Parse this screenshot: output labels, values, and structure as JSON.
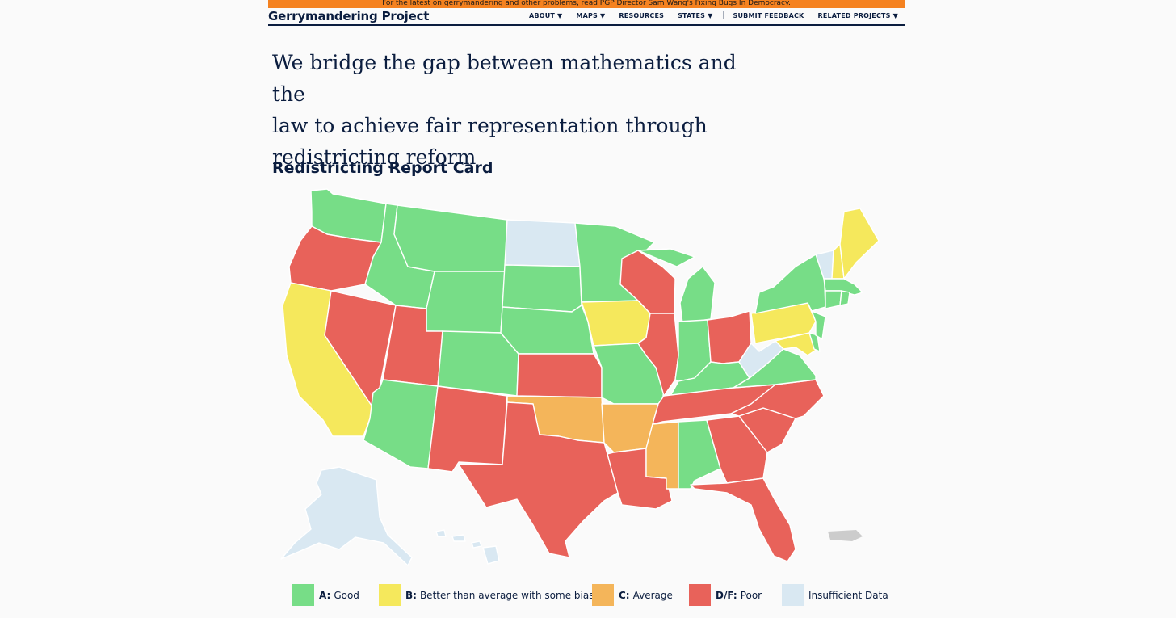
{
  "banner": {
    "text": "For the latest on gerrymandering and other problems, read PGP Director Sam Wang's ",
    "link": "Fixing Bugs In Democracy",
    "end": "."
  },
  "header": {
    "brand": "Gerrymandering Project",
    "nav": [
      "ABOUT ▼",
      "MAPS ▼",
      "RESOURCES",
      "STATES ▼",
      "SUBMIT FEEDBACK",
      "RELATED PROJECTS ▼"
    ]
  },
  "hero": {
    "line1": "We bridge the gap between mathematics and the",
    "line2": "law to achieve fair representation through",
    "line3": "redistricting reform"
  },
  "report": {
    "title": "Redistricting Report Card"
  },
  "colors": {
    "A": "#77dd87",
    "B": "#f5e85c",
    "C": "#f4b55a",
    "DF": "#e8625a",
    "NA": "#d9e8f2",
    "territory": "#cccccc",
    "banner": "#f58220",
    "navy": "#0b1d3f"
  },
  "legend": [
    {
      "grade": "A:",
      "label": "Good",
      "key": "A"
    },
    {
      "grade": "B:",
      "label": "Better than average with some bias",
      "key": "B"
    },
    {
      "grade": "C:",
      "label": "Average",
      "key": "C"
    },
    {
      "grade": "D/F:",
      "label": "Poor",
      "key": "DF"
    },
    {
      "grade": "",
      "label": "Insufficient Data",
      "key": "NA"
    }
  ],
  "states": {
    "WA": "A",
    "OR": "DF",
    "CA": "B",
    "NV": "DF",
    "ID": "A",
    "MT": "A",
    "WY": "A",
    "UT": "DF",
    "AZ": "A",
    "CO": "A",
    "NM": "DF",
    "ND": "NA",
    "SD": "A",
    "NE": "A",
    "KS": "DF",
    "OK": "C",
    "TX": "DF",
    "MN": "A",
    "IA": "B",
    "MO": "A",
    "AR": "C",
    "LA": "DF",
    "WI": "DF",
    "IL": "DF",
    "MS": "C",
    "MI": "A",
    "IN": "A",
    "KY": "A",
    "TN": "DF",
    "AL": "A",
    "OH": "DF",
    "GA": "DF",
    "FL": "DF",
    "SC": "DF",
    "NC": "DF",
    "VA": "A",
    "WV": "NA",
    "PA": "B",
    "NY": "A",
    "VT": "NA",
    "NH": "B",
    "ME": "B",
    "MA": "A",
    "CT": "A",
    "RI": "A",
    "NJ": "A",
    "DE": "A",
    "MD": "B",
    "AK": "NA",
    "HI": "NA"
  }
}
